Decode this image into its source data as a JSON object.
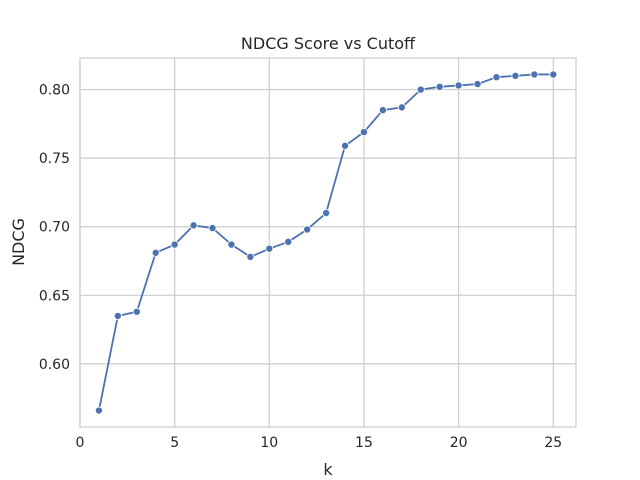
{
  "chart_data": {
    "type": "line",
    "title": "NDCG Score vs Cutoff",
    "xlabel": "k",
    "ylabel": "NDCG",
    "xlim": [
      0,
      26.2
    ],
    "ylim": [
      0.554,
      0.823
    ],
    "xticks": [
      0,
      5,
      10,
      15,
      20,
      25
    ],
    "yticks": [
      0.6,
      0.65,
      0.7,
      0.75,
      0.8
    ],
    "ytick_labels": [
      "0.60",
      "0.65",
      "0.70",
      "0.75",
      "0.80"
    ],
    "grid": true,
    "marker": "circle",
    "color": "#4c72b0",
    "x": [
      1,
      2,
      3,
      4,
      5,
      6,
      7,
      8,
      9,
      10,
      11,
      12,
      13,
      14,
      15,
      16,
      17,
      18,
      19,
      20,
      21,
      22,
      23,
      24,
      25
    ],
    "y": [
      0.566,
      0.635,
      0.638,
      0.681,
      0.687,
      0.701,
      0.699,
      0.687,
      0.678,
      0.684,
      0.689,
      0.698,
      0.71,
      0.759,
      0.769,
      0.785,
      0.787,
      0.8,
      0.802,
      0.803,
      0.804,
      0.809,
      0.81,
      0.811,
      0.811
    ]
  }
}
